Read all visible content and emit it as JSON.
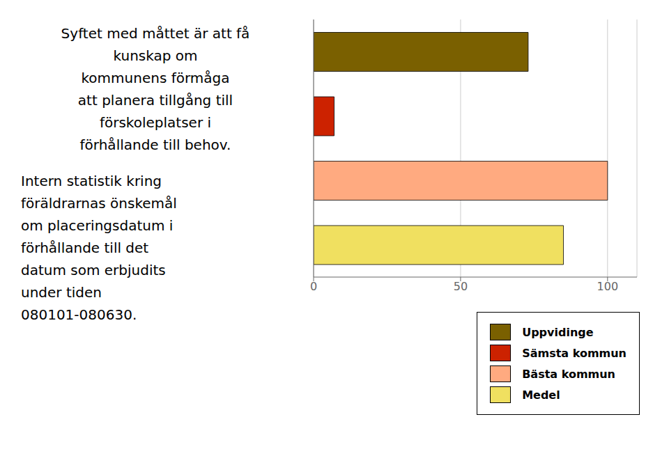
{
  "chart_data": {
    "type": "bar",
    "orientation": "horizontal",
    "categories": [
      "Uppvidinge",
      "Sämsta kommun",
      "Bästa kommun",
      "Medel"
    ],
    "values": [
      73,
      7,
      100,
      85
    ],
    "colors": [
      "#7a6000",
      "#cc2200",
      "#ffaa80",
      "#f0e060"
    ],
    "xlim": [
      0,
      110
    ],
    "xticks": [
      0,
      50,
      100
    ],
    "grid": true,
    "tick_labels": "x",
    "legend": "bottom",
    "annotations": [
      [
        "Syftet med måttet är att få",
        "kunskap om",
        "kommunens förmåga",
        "att planera tillgång till",
        "förskoleplatser i",
        "förhållande till behov."
      ],
      [
        "Intern statistik kring",
        "föräldrarnas önskemål",
        "om placeringsdatum i",
        "förhållande till det",
        "datum som erbjudits",
        "under tiden",
        "080101-080630."
      ]
    ]
  }
}
